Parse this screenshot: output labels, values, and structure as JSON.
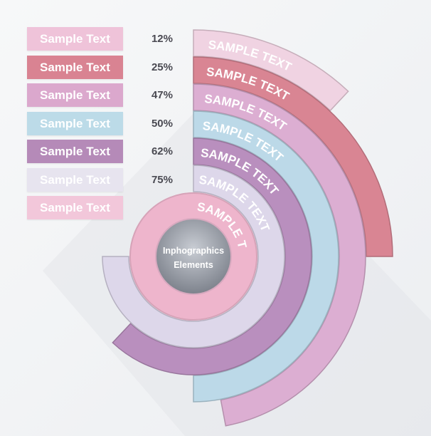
{
  "chart_data": {
    "type": "radial-bar",
    "center_title": [
      "Inphographics",
      "Elements"
    ],
    "legend": [
      {
        "label": "Sample Text",
        "value_label": "12%",
        "color": "#efc3d9"
      },
      {
        "label": "Sample Text",
        "value_label": "25%",
        "color": "#d98392"
      },
      {
        "label": "Sample Text",
        "value_label": "47%",
        "color": "#dba8cd"
      },
      {
        "label": "Sample Text",
        "value_label": "50%",
        "color": "#bcdbe8"
      },
      {
        "label": "Sample Text",
        "value_label": "62%",
        "color": "#b58ab8"
      },
      {
        "label": "Sample Text",
        "value_label": "75%",
        "color": "#e7e4ef"
      },
      {
        "label": "Sample Text",
        "value_label": "",
        "color": "#f2c7da"
      }
    ],
    "rings": [
      {
        "text": "SAMPLE TEXT",
        "value": 12,
        "color": "#f0d3e2"
      },
      {
        "text": "SAMPLE TEXT",
        "value": 25,
        "color": "#d98593"
      },
      {
        "text": "SAMPLE TEXT",
        "value": 47,
        "color": "#dcaed2"
      },
      {
        "text": "SAMPLE TEXT",
        "value": 50,
        "color": "#bcd9e8"
      },
      {
        "text": "SAMPLE TEXT",
        "value": 62,
        "color": "#b98fbe"
      },
      {
        "text": "SAMPLE TEXT",
        "value": 75,
        "color": "#ddd7ea"
      },
      {
        "text": "SAMPLE TEXT",
        "value": 100,
        "color": "#eeb5cc"
      }
    ]
  }
}
